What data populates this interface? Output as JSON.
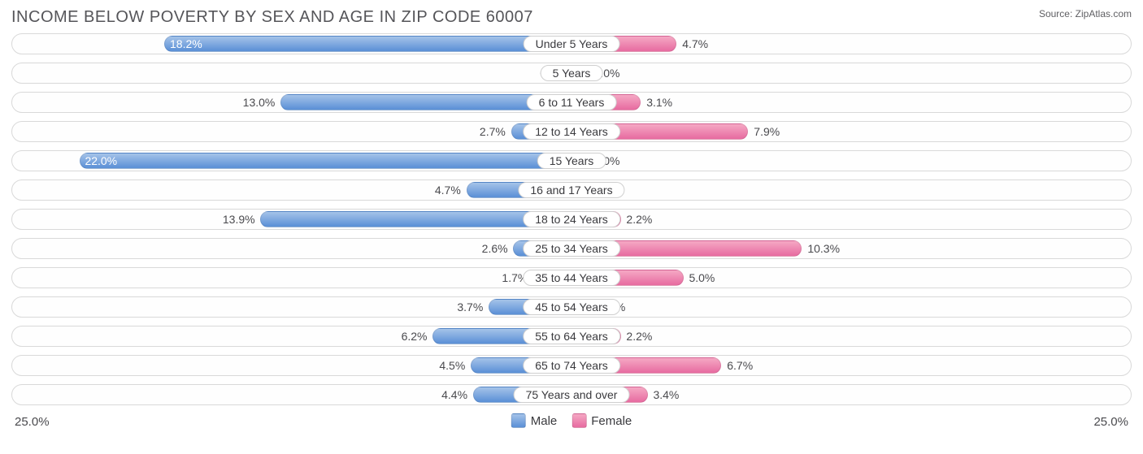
{
  "title": "INCOME BELOW POVERTY BY SEX AND AGE IN ZIP CODE 60007",
  "source": "Source: ZipAtlas.com",
  "axis_max": 25.0,
  "axis_label_left": "25.0%",
  "axis_label_right": "25.0%",
  "legend": {
    "male": "Male",
    "female": "Female"
  },
  "colors": {
    "male_fill_light": "#a5c3e9",
    "male_fill_dark": "#5a8fd6",
    "female_fill_light": "#f5a8c4",
    "female_fill_dark": "#e76ba0",
    "track_border": "#d9d9d9",
    "text": "#4a4a4e",
    "bg": "#ffffff"
  },
  "label_inside_threshold": 15.0,
  "rows": [
    {
      "category": "Under 5 Years",
      "male": 18.2,
      "female": 4.7
    },
    {
      "category": "5 Years",
      "male": 0.0,
      "female": 0.0
    },
    {
      "category": "6 to 11 Years",
      "male": 13.0,
      "female": 3.1
    },
    {
      "category": "12 to 14 Years",
      "male": 2.7,
      "female": 7.9
    },
    {
      "category": "15 Years",
      "male": 22.0,
      "female": 0.0
    },
    {
      "category": "16 and 17 Years",
      "male": 4.7,
      "female": 0.0
    },
    {
      "category": "18 to 24 Years",
      "male": 13.9,
      "female": 2.2
    },
    {
      "category": "25 to 34 Years",
      "male": 2.6,
      "female": 10.3
    },
    {
      "category": "35 to 44 Years",
      "male": 1.7,
      "female": 5.0
    },
    {
      "category": "45 to 54 Years",
      "male": 3.7,
      "female": 1.0
    },
    {
      "category": "55 to 64 Years",
      "male": 6.2,
      "female": 2.2
    },
    {
      "category": "65 to 74 Years",
      "male": 4.5,
      "female": 6.7
    },
    {
      "category": "75 Years and over",
      "male": 4.4,
      "female": 3.4
    }
  ],
  "female_zero_bar_pct": 3.0
}
